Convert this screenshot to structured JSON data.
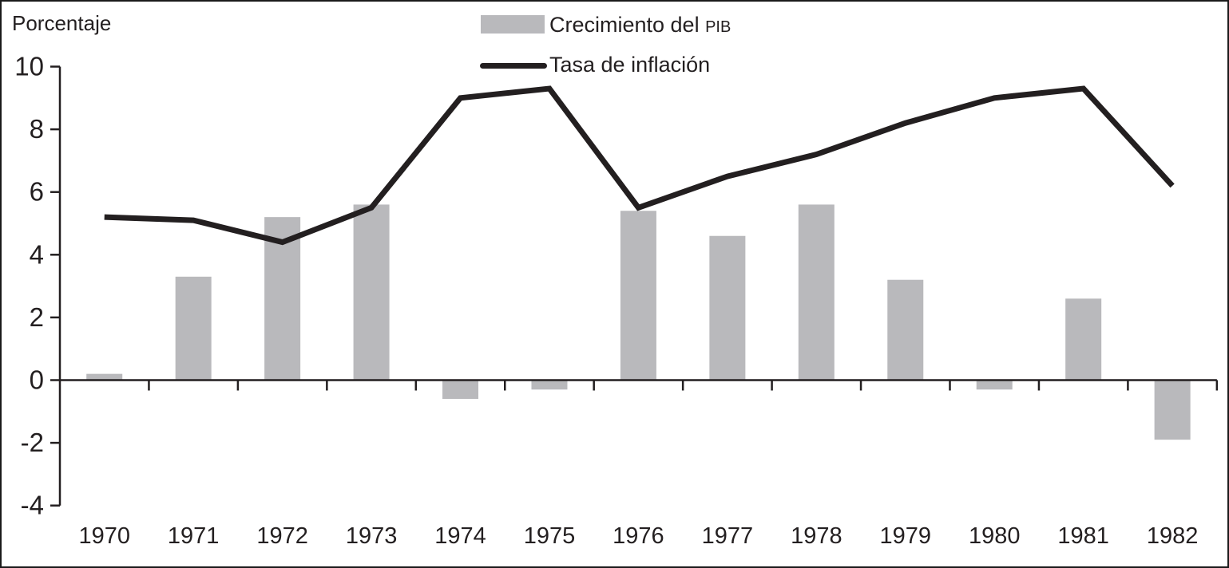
{
  "figure": {
    "axis_title": "Porcentaje"
  },
  "legend": {
    "gdp": {
      "main": "Crecimiento del ",
      "caps": "PIB"
    },
    "inflation": {
      "label": "Tasa de inflación"
    }
  },
  "chart_data": {
    "type": "bar",
    "title": "",
    "ylabel": "Porcentaje",
    "xlabel": "",
    "ylim": [
      -4,
      10
    ],
    "yticks": [
      -4,
      -2,
      0,
      2,
      4,
      6,
      8,
      10
    ],
    "grid": false,
    "legend_position": "top-center",
    "categories": [
      "1970",
      "1971",
      "1972",
      "1973",
      "1974",
      "1975",
      "1976",
      "1977",
      "1978",
      "1979",
      "1980",
      "1981",
      "1982"
    ],
    "series": [
      {
        "name": "Crecimiento del PIB",
        "type": "bar",
        "values": [
          0.2,
          3.3,
          5.2,
          5.6,
          -0.6,
          -0.3,
          5.4,
          4.6,
          5.6,
          3.2,
          -0.3,
          2.6,
          -1.9
        ]
      },
      {
        "name": "Tasa de inflación",
        "type": "line",
        "values": [
          5.2,
          5.1,
          4.4,
          5.5,
          9.0,
          9.3,
          5.5,
          6.5,
          7.2,
          8.2,
          9.0,
          9.3,
          6.2
        ]
      }
    ],
    "colors": {
      "bar": "#b9b9bc",
      "line": "#231f20",
      "axis": "#231f20",
      "text": "#231f20"
    }
  }
}
